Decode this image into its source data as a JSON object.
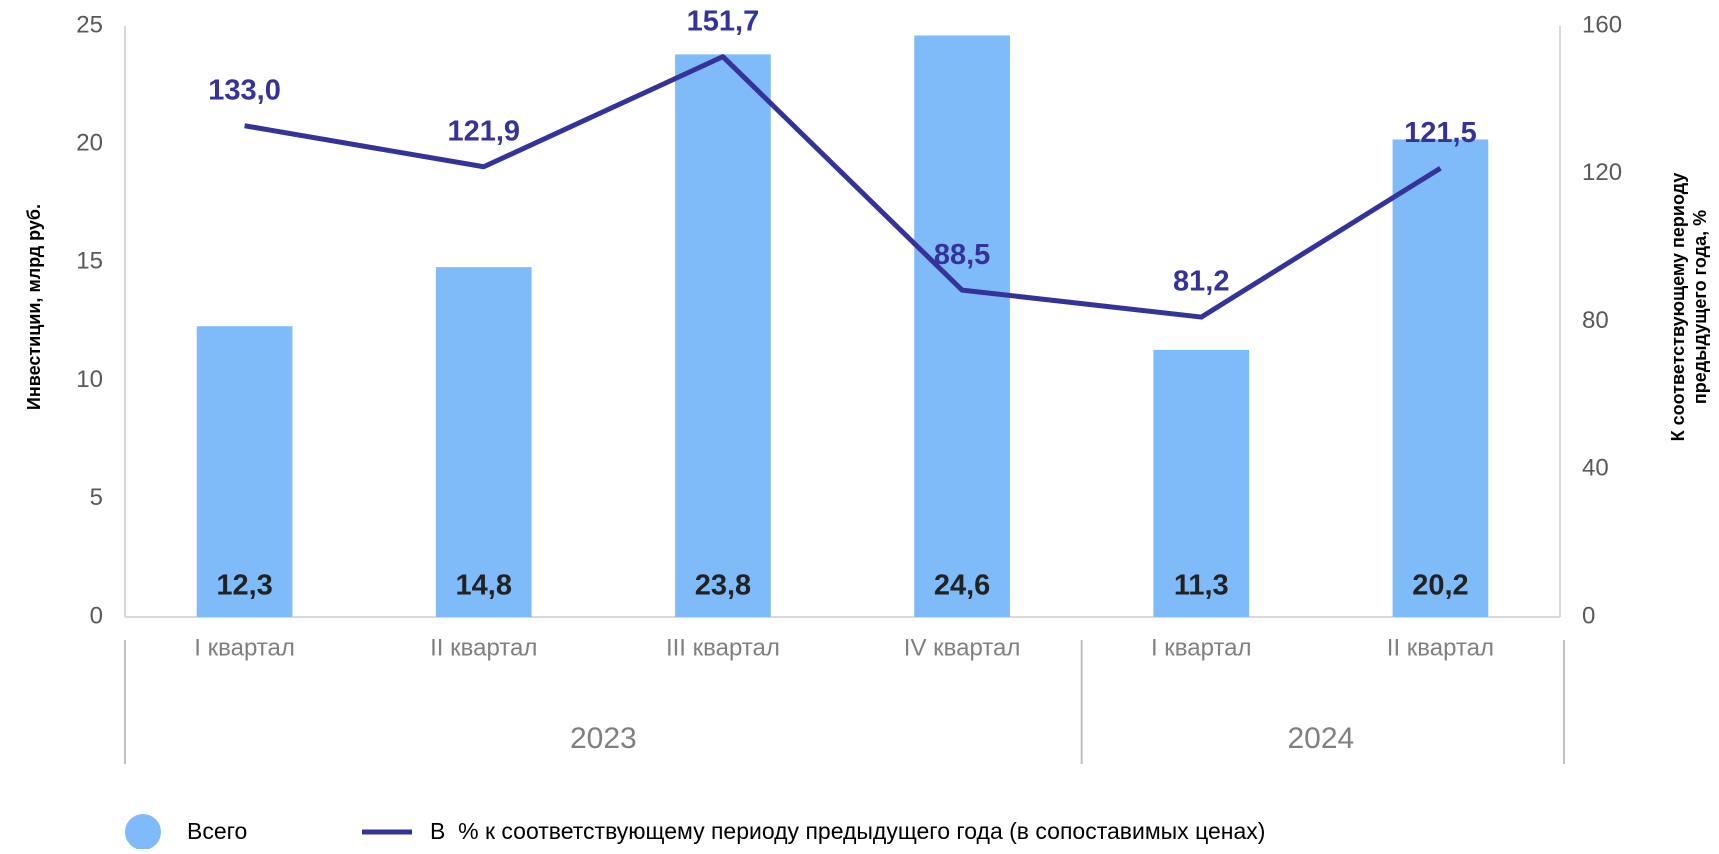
{
  "chart_data": {
    "type": "bar_line",
    "categories": [
      "I квартал",
      "II квартал",
      "III квартал",
      "IV квартал",
      "I квартал",
      "II квартал"
    ],
    "groups": [
      {
        "label": "2023",
        "size": 4
      },
      {
        "label": "2024",
        "size": 2
      }
    ],
    "ylabel": "Инвестиции, млрд руб.",
    "y2label": [
      "К соответствующему периоду",
      "предыдущего года, %"
    ],
    "ylim": [
      0,
      25
    ],
    "yticks": [
      0,
      5,
      10,
      15,
      20,
      25
    ],
    "y2lim": [
      0,
      160
    ],
    "y2ticks": [
      0,
      40,
      80,
      120,
      160
    ],
    "series": [
      {
        "name": "Всего",
        "type": "bar",
        "color": "#7fbaf9",
        "values": [
          12.3,
          14.8,
          23.8,
          24.6,
          11.3,
          20.2
        ],
        "value_labels": [
          "12,3",
          "14,8",
          "23,8",
          "24,6",
          "11,3",
          "20,2"
        ]
      },
      {
        "name": "В  % к соответствующему периоду предыдущего года (в сопоставимых ценах)",
        "type": "line",
        "axis": "y2",
        "color": "#35339a",
        "values": [
          133.0,
          121.9,
          151.7,
          88.5,
          81.2,
          121.5
        ],
        "value_labels": [
          "133,0",
          "121,9",
          "151,7",
          "88,5",
          "81,2",
          "121,5"
        ]
      }
    ],
    "legend": "bottom"
  }
}
